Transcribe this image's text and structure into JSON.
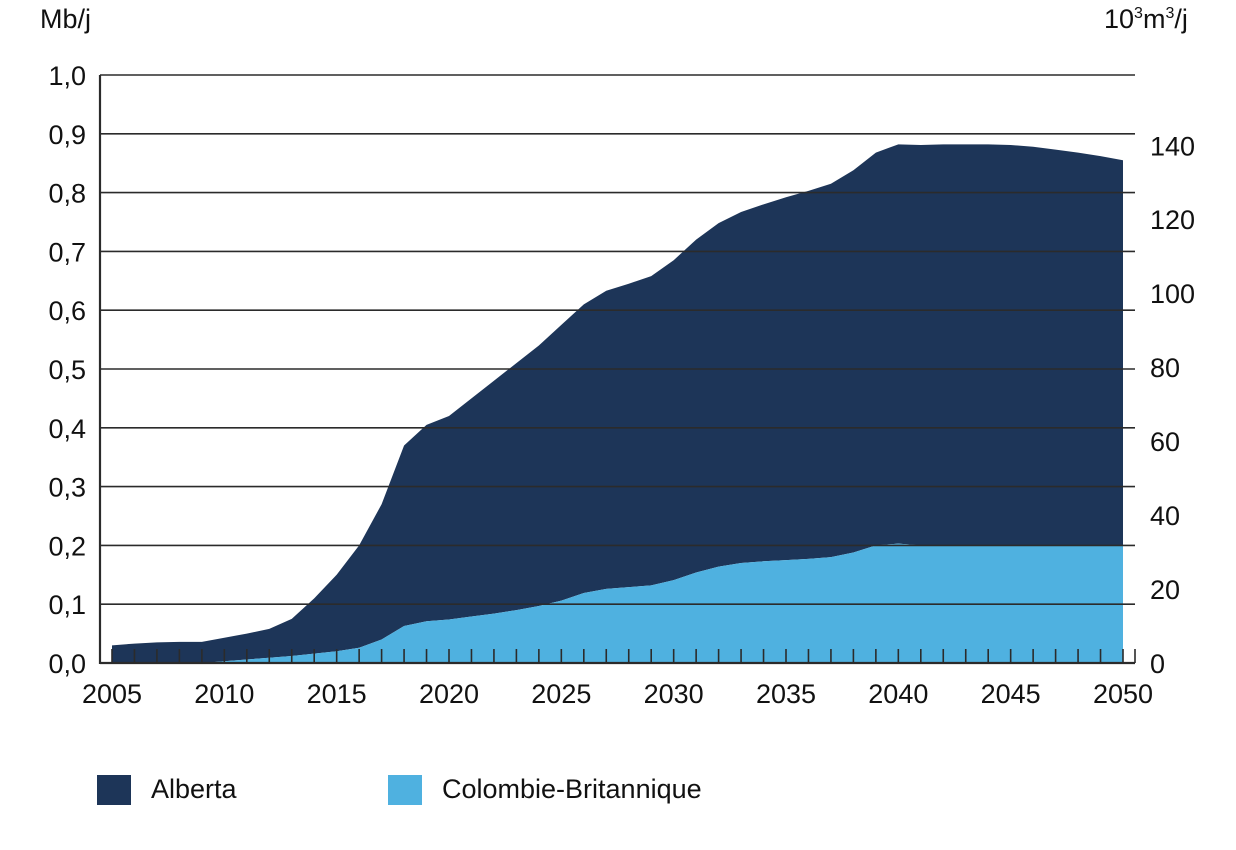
{
  "units": {
    "left": "Mb/j",
    "right_base": "10",
    "right_sup1": "3",
    "right_mid": "m",
    "right_sup2": "3",
    "right_end": "/j"
  },
  "colors": {
    "alberta": "#1d3558",
    "colombie_britannique": "#4fb1e0",
    "grid": "#2b2b2b"
  },
  "legend": [
    {
      "label": "Alberta",
      "color": "#1d3558"
    },
    {
      "label": "Colombie-Britannique",
      "color": "#4fb1e0"
    }
  ],
  "chart_data": {
    "type": "area",
    "stacked": true,
    "title": "",
    "xlabel": "",
    "ylabel": "Mb/j",
    "ylabel_right": "10³m³/j",
    "xlim": [
      2005,
      2050
    ],
    "ylim": [
      0,
      1.0
    ],
    "ylim_right": [
      0,
      159
    ],
    "grid": true,
    "legend_position": "bottom",
    "x_ticks": [
      "2005",
      "2010",
      "2015",
      "2020",
      "2025",
      "2030",
      "2035",
      "2040",
      "2045",
      "2050"
    ],
    "y_ticks": [
      "0,0",
      "0,1",
      "0,2",
      "0,3",
      "0,4",
      "0,5",
      "0,6",
      "0,7",
      "0,8",
      "0,9",
      "1,0"
    ],
    "y_ticks_right": [
      "0",
      "20",
      "40",
      "60",
      "80",
      "100",
      "120",
      "140"
    ],
    "x": [
      2005,
      2006,
      2007,
      2008,
      2009,
      2010,
      2011,
      2012,
      2013,
      2014,
      2015,
      2016,
      2017,
      2018,
      2019,
      2020,
      2021,
      2022,
      2023,
      2024,
      2025,
      2026,
      2027,
      2028,
      2029,
      2030,
      2031,
      2032,
      2033,
      2034,
      2035,
      2036,
      2037,
      2038,
      2039,
      2040,
      2041,
      2042,
      2043,
      2044,
      2045,
      2046,
      2047,
      2048,
      2049,
      2050
    ],
    "series": [
      {
        "name": "Colombie-Britannique",
        "values": [
          0,
          0,
          0,
          0,
          0,
          0.003,
          0.006,
          0.009,
          0.012,
          0.016,
          0.02,
          0.026,
          0.04,
          0.063,
          0.071,
          0.074,
          0.079,
          0.084,
          0.09,
          0.097,
          0.106,
          0.119,
          0.126,
          0.129,
          0.132,
          0.141,
          0.154,
          0.164,
          0.17,
          0.173,
          0.175,
          0.177,
          0.18,
          0.188,
          0.2,
          0.203,
          0.2,
          0.2,
          0.2,
          0.2,
          0.2,
          0.2,
          0.2,
          0.2,
          0.2,
          0.2
        ]
      },
      {
        "name": "Alberta",
        "values": [
          0.03,
          0.033,
          0.035,
          0.036,
          0.036,
          0.04,
          0.044,
          0.049,
          0.063,
          0.094,
          0.13,
          0.174,
          0.23,
          0.307,
          0.334,
          0.346,
          0.371,
          0.396,
          0.42,
          0.443,
          0.469,
          0.491,
          0.507,
          0.516,
          0.526,
          0.544,
          0.566,
          0.584,
          0.597,
          0.607,
          0.617,
          0.626,
          0.635,
          0.65,
          0.668,
          0.679,
          0.681,
          0.682,
          0.682,
          0.682,
          0.681,
          0.678,
          0.673,
          0.668,
          0.662,
          0.655
        ]
      }
    ],
    "totals": [
      0.03,
      0.033,
      0.035,
      0.036,
      0.036,
      0.043,
      0.05,
      0.058,
      0.075,
      0.11,
      0.15,
      0.2,
      0.27,
      0.37,
      0.405,
      0.42,
      0.45,
      0.48,
      0.51,
      0.54,
      0.575,
      0.61,
      0.633,
      0.645,
      0.658,
      0.685,
      0.72,
      0.748,
      0.767,
      0.78,
      0.792,
      0.803,
      0.815,
      0.838,
      0.868,
      0.882,
      0.881,
      0.882,
      0.882,
      0.882,
      0.881,
      0.878,
      0.873,
      0.868,
      0.862,
      0.855
    ]
  }
}
